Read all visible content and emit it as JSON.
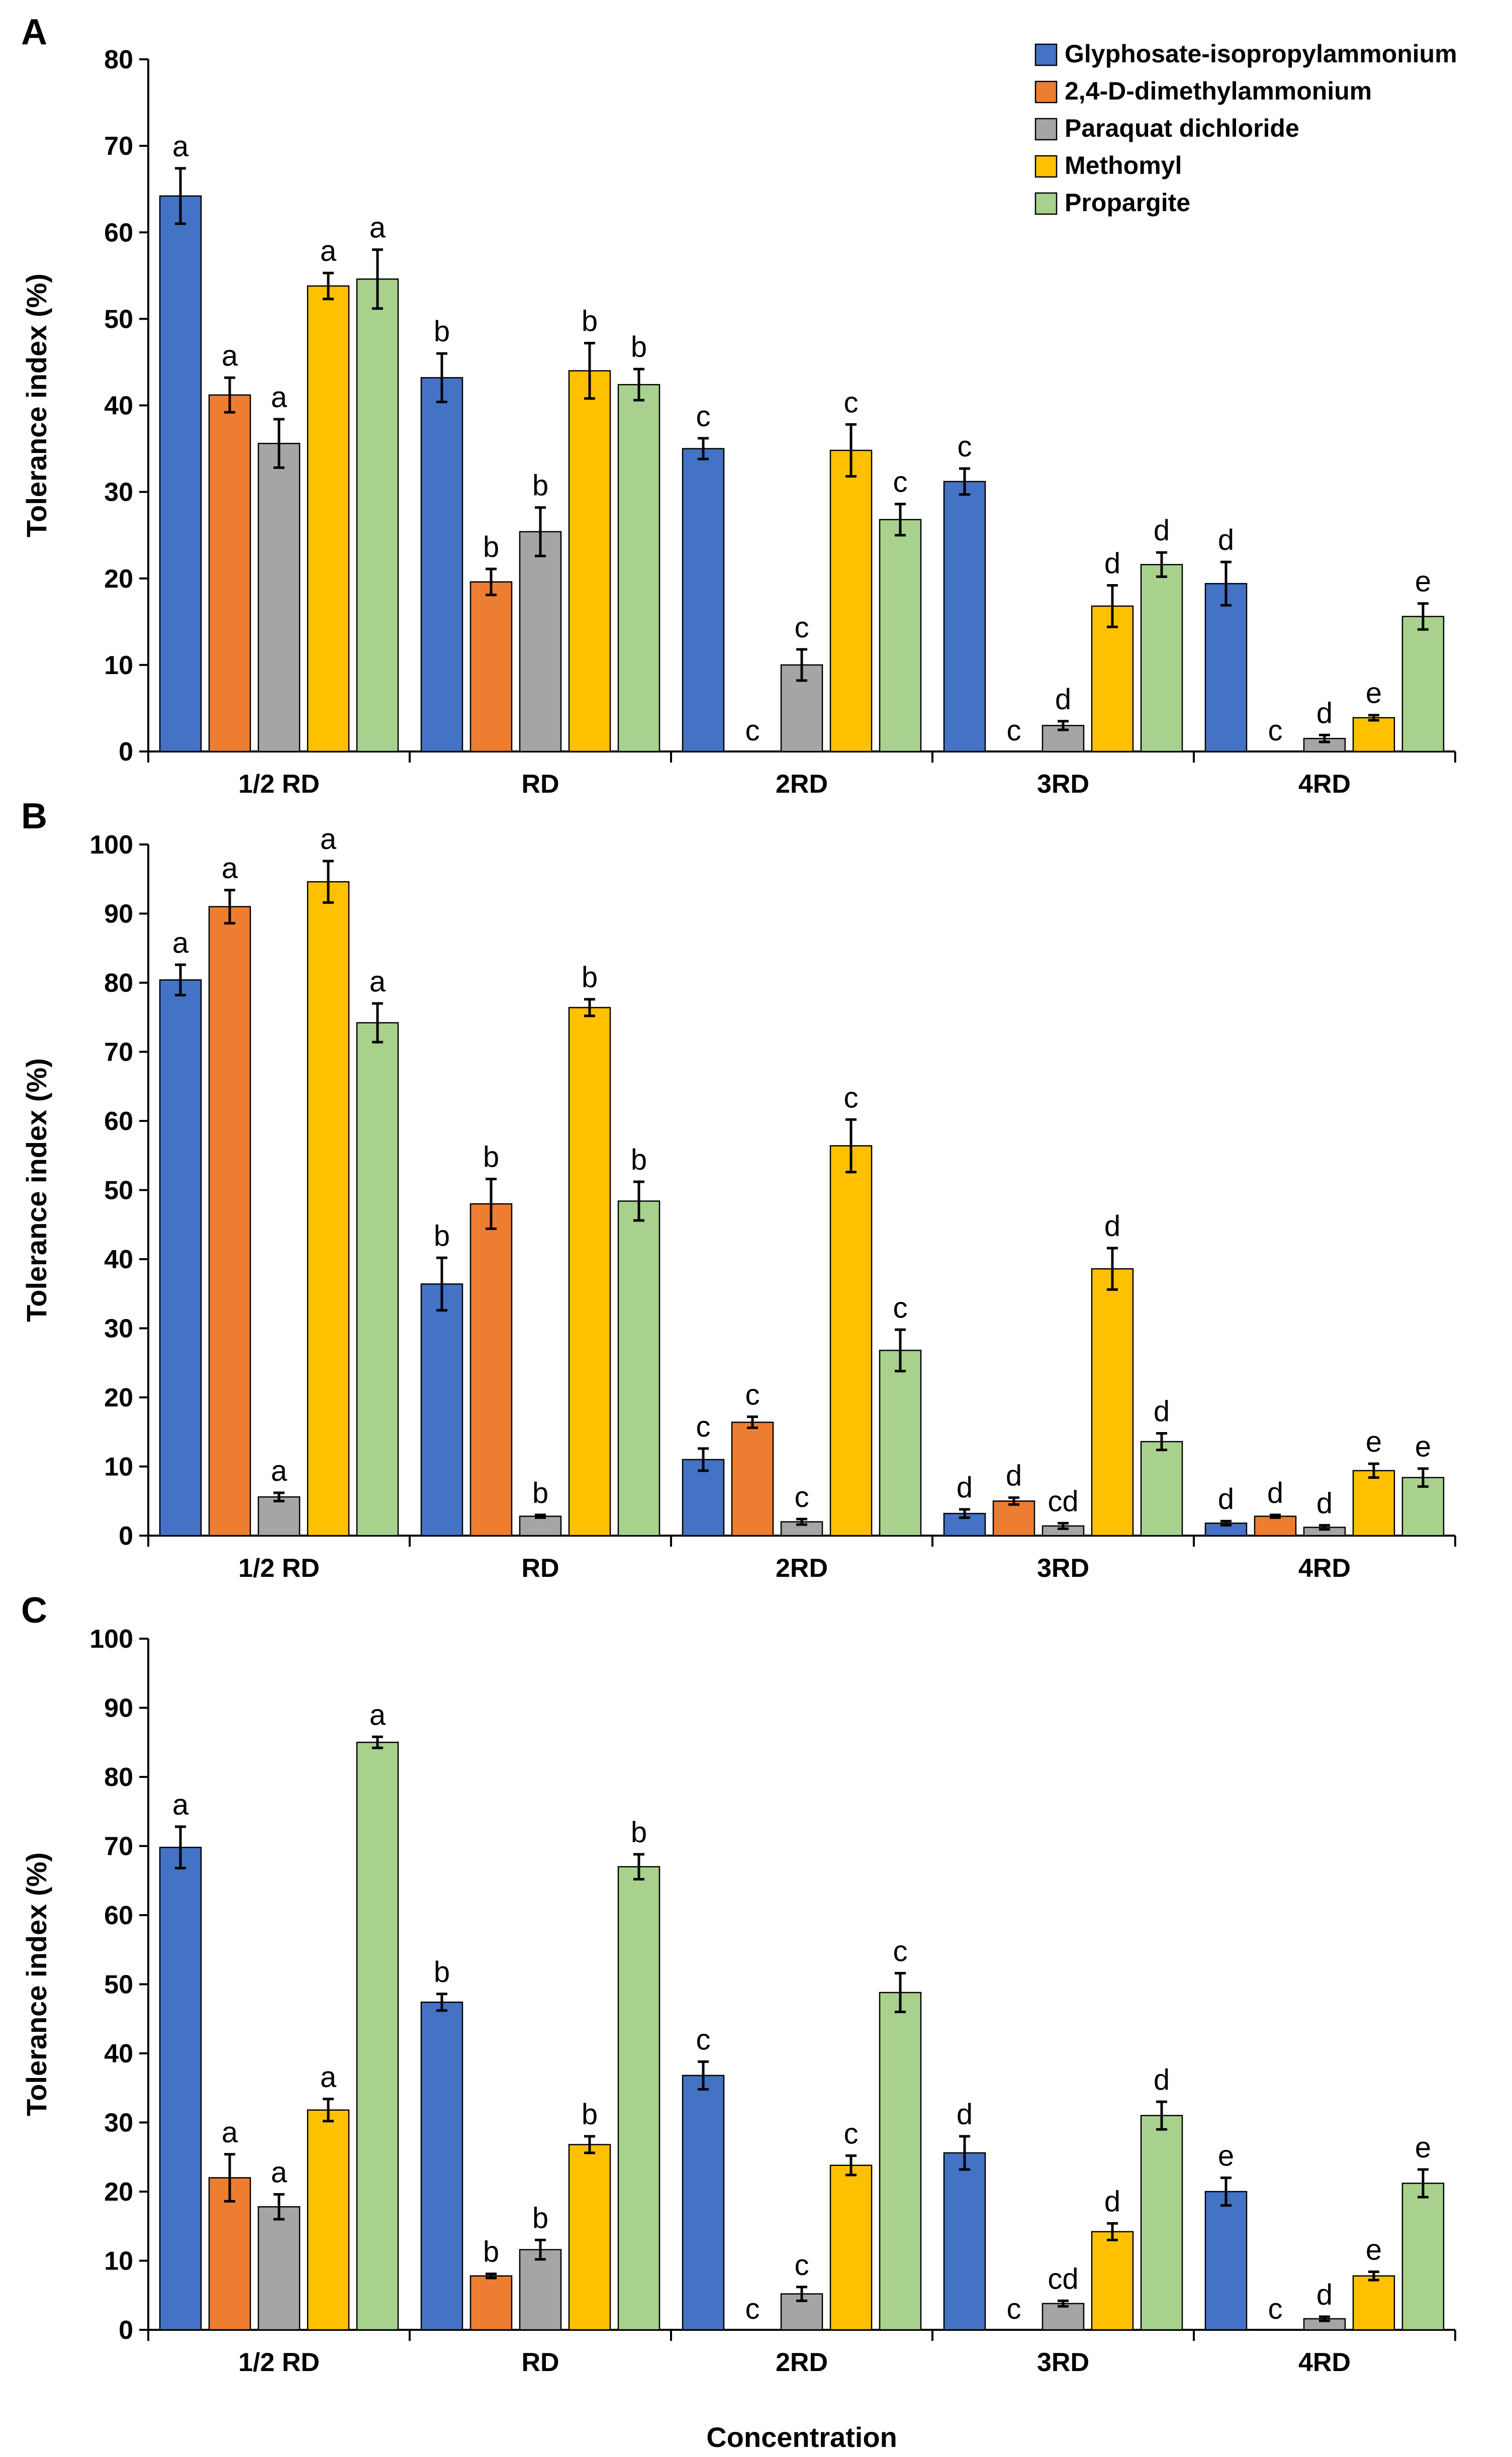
{
  "series_meta": [
    {
      "name": "Glyphosate-isopropylammonium",
      "color": "#4472C4"
    },
    {
      "name": "2,4-D-dimethylammonium",
      "color": "#ED7D31"
    },
    {
      "name": "Paraquat dichloride",
      "color": "#A5A5A5"
    },
    {
      "name": "Methomyl",
      "color": "#FFC000"
    },
    {
      "name": "Propargite",
      "color": "#A9D18E"
    }
  ],
  "xlabel": "Concentration",
  "chart_data": [
    {
      "panel": "A",
      "type": "bar",
      "ylabel": "Tolerance index (%)",
      "ylim": [
        0,
        80
      ],
      "yticks": [
        0,
        10,
        20,
        30,
        40,
        50,
        60,
        70,
        80
      ],
      "categories": [
        "1/2 RD",
        "RD",
        "2RD",
        "3RD",
        "4RD"
      ],
      "legend": "top-right",
      "series": [
        {
          "name": "Glyphosate-isopropylammonium",
          "values": [
            64.2,
            43.2,
            35.0,
            31.2,
            19.4
          ],
          "errors": [
            3.2,
            2.8,
            1.2,
            1.5,
            2.5
          ],
          "letters": [
            "a",
            "b",
            "c",
            "c",
            "d"
          ]
        },
        {
          "name": "2,4-D-dimethylammonium",
          "values": [
            41.2,
            19.6,
            0,
            0,
            0
          ],
          "errors": [
            2.0,
            1.5,
            0,
            0,
            0
          ],
          "letters": [
            "a",
            "b",
            "c",
            "c",
            "c"
          ]
        },
        {
          "name": "Paraquat dichloride",
          "values": [
            35.6,
            25.4,
            10.0,
            3.0,
            1.5
          ],
          "errors": [
            2.8,
            2.8,
            1.8,
            0.5,
            0.4
          ],
          "letters": [
            "a",
            "b",
            "c",
            "d",
            "d"
          ]
        },
        {
          "name": "Methomyl",
          "values": [
            53.8,
            44.0,
            34.8,
            16.8,
            3.9
          ],
          "errors": [
            1.5,
            3.2,
            3.0,
            2.4,
            0.3
          ],
          "letters": [
            "a",
            "b",
            "c",
            "d",
            "e"
          ]
        },
        {
          "name": "Propargite",
          "values": [
            54.6,
            42.4,
            26.8,
            21.6,
            15.6
          ],
          "errors": [
            3.4,
            1.8,
            1.8,
            1.4,
            1.5
          ],
          "letters": [
            "a",
            "b",
            "c",
            "d",
            "e"
          ]
        }
      ]
    },
    {
      "panel": "B",
      "type": "bar",
      "ylabel": "Tolerance index (%)",
      "ylim": [
        0,
        100
      ],
      "yticks": [
        0,
        10,
        20,
        30,
        40,
        50,
        60,
        70,
        80,
        90,
        100
      ],
      "categories": [
        "1/2 RD",
        "RD",
        "2RD",
        "3RD",
        "4RD"
      ],
      "series": [
        {
          "name": "Glyphosate-isopropylammonium",
          "values": [
            80.4,
            36.4,
            11.0,
            3.2,
            1.8
          ],
          "errors": [
            2.2,
            3.8,
            1.6,
            0.6,
            0.3
          ],
          "letters": [
            "a",
            "b",
            "c",
            "d",
            "d"
          ]
        },
        {
          "name": "2,4-D-dimethylammonium",
          "values": [
            91.0,
            48.0,
            16.4,
            5.0,
            2.8
          ],
          "errors": [
            2.4,
            3.6,
            0.8,
            0.5,
            0.2
          ],
          "letters": [
            "a",
            "b",
            "c",
            "d",
            "d"
          ]
        },
        {
          "name": "Paraquat dichloride",
          "values": [
            5.6,
            2.8,
            2.0,
            1.4,
            1.2
          ],
          "errors": [
            0.6,
            0.2,
            0.4,
            0.4,
            0.3
          ],
          "letters": [
            "a",
            "b",
            "c",
            "cd",
            "d"
          ]
        },
        {
          "name": "Methomyl",
          "values": [
            94.6,
            76.4,
            56.4,
            38.6,
            9.4
          ],
          "errors": [
            3.0,
            1.2,
            3.8,
            3.0,
            1.0
          ],
          "letters": [
            "a",
            "b",
            "c",
            "d",
            "e"
          ]
        },
        {
          "name": "Propargite",
          "values": [
            74.2,
            48.4,
            26.8,
            13.6,
            8.4
          ],
          "errors": [
            2.8,
            2.8,
            3.0,
            1.2,
            1.3
          ],
          "letters": [
            "a",
            "b",
            "c",
            "d",
            "e"
          ]
        }
      ]
    },
    {
      "panel": "C",
      "type": "bar",
      "ylabel": "Tolerance index (%)",
      "ylim": [
        0,
        100
      ],
      "yticks": [
        0,
        10,
        20,
        30,
        40,
        50,
        60,
        70,
        80,
        90,
        100
      ],
      "categories": [
        "1/2 RD",
        "RD",
        "2RD",
        "3RD",
        "4RD"
      ],
      "xlabel": "Concentration",
      "series": [
        {
          "name": "Glyphosate-isopropylammonium",
          "values": [
            69.8,
            47.4,
            36.8,
            25.6,
            20.0
          ],
          "errors": [
            3.0,
            1.2,
            2.0,
            2.4,
            2.0
          ],
          "letters": [
            "a",
            "b",
            "c",
            "d",
            "e"
          ]
        },
        {
          "name": "2,4-D-dimethylammonium",
          "values": [
            22.0,
            7.8,
            0,
            0,
            0
          ],
          "errors": [
            3.4,
            0.3,
            0,
            0,
            0
          ],
          "letters": [
            "a",
            "b",
            "c",
            "c",
            "c"
          ]
        },
        {
          "name": "Paraquat dichloride",
          "values": [
            17.8,
            11.6,
            5.2,
            3.8,
            1.6
          ],
          "errors": [
            1.8,
            1.4,
            1.0,
            0.4,
            0.3
          ],
          "letters": [
            "a",
            "b",
            "c",
            "cd",
            "d"
          ]
        },
        {
          "name": "Methomyl",
          "values": [
            31.8,
            26.8,
            23.8,
            14.2,
            7.8
          ],
          "errors": [
            1.6,
            1.2,
            1.4,
            1.2,
            0.6
          ],
          "letters": [
            "a",
            "b",
            "c",
            "d",
            "e"
          ]
        },
        {
          "name": "Propargite",
          "values": [
            85.0,
            67.0,
            48.8,
            31.0,
            21.2
          ],
          "errors": [
            0.8,
            1.8,
            2.8,
            2.0,
            2.0
          ],
          "letters": [
            "a",
            "b",
            "c",
            "d",
            "e"
          ]
        }
      ]
    }
  ]
}
